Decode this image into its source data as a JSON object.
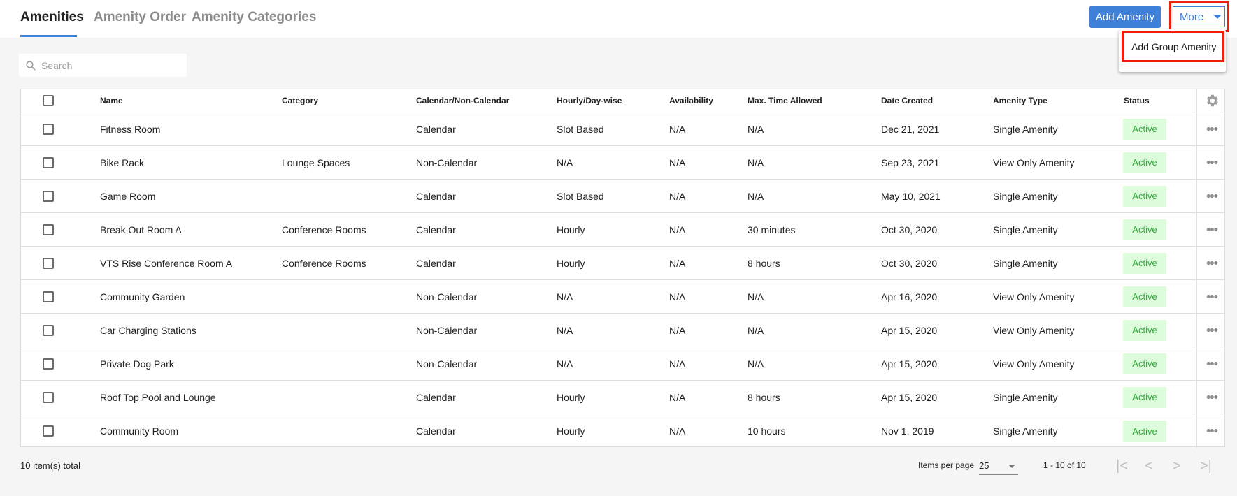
{
  "tabs": [
    {
      "label": "Amenities",
      "active": true
    },
    {
      "label": "Amenity Order"
    },
    {
      "label": "Amenity Categories"
    }
  ],
  "actions": {
    "add_label": "Add Amenity",
    "more_label": "More",
    "menu_items": [
      "Add Group Amenity"
    ]
  },
  "search": {
    "placeholder": "Search",
    "value": ""
  },
  "table": {
    "columns": [
      "Name",
      "Category",
      "Calendar/Non-Calendar",
      "Hourly/Day-wise",
      "Availability",
      "Max. Time Allowed",
      "Date Created",
      "Amenity Type",
      "Status"
    ],
    "rows": [
      [
        "Fitness Room",
        "",
        "Calendar",
        "Slot Based",
        "N/A",
        "N/A",
        "Dec 21, 2021",
        "Single Amenity",
        "Active"
      ],
      [
        "Bike Rack",
        "Lounge Spaces",
        "Non-Calendar",
        "N/A",
        "N/A",
        "N/A",
        "Sep 23, 2021",
        "View Only Amenity",
        "Active"
      ],
      [
        "Game Room",
        "",
        "Calendar",
        "Slot Based",
        "N/A",
        "N/A",
        "May 10, 2021",
        "Single Amenity",
        "Active"
      ],
      [
        "Break Out Room A",
        "Conference Rooms",
        "Calendar",
        "Hourly",
        "N/A",
        "30 minutes",
        "Oct 30, 2020",
        "Single Amenity",
        "Active"
      ],
      [
        "VTS Rise Conference Room A",
        "Conference Rooms",
        "Calendar",
        "Hourly",
        "N/A",
        "8 hours",
        "Oct 30, 2020",
        "Single Amenity",
        "Active"
      ],
      [
        "Community Garden",
        "",
        "Non-Calendar",
        "N/A",
        "N/A",
        "N/A",
        "Apr 16, 2020",
        "View Only Amenity",
        "Active"
      ],
      [
        "Car Charging Stations",
        "",
        "Non-Calendar",
        "N/A",
        "N/A",
        "N/A",
        "Apr 15, 2020",
        "View Only Amenity",
        "Active"
      ],
      [
        "Private Dog Park",
        "",
        "Non-Calendar",
        "N/A",
        "N/A",
        "N/A",
        "Apr 15, 2020",
        "View Only Amenity",
        "Active"
      ],
      [
        "Roof Top Pool and Lounge",
        "",
        "Calendar",
        "Hourly",
        "N/A",
        "8 hours",
        "Apr 15, 2020",
        "Single Amenity",
        "Active"
      ],
      [
        "Community Room",
        "",
        "Calendar",
        "Hourly",
        "N/A",
        "10 hours",
        "Nov 1, 2019",
        "Single Amenity",
        "Active"
      ]
    ]
  },
  "footer": {
    "total": "10 item(s) total",
    "items_per_page_label": "Items per page",
    "items_per_page": "25",
    "range": "1 - 10 of 10"
  },
  "colors": {
    "accent": "#3f80d9",
    "highlight": "#f21d0a",
    "active_bg": "#dcfcdc",
    "active_text": "#2eaa35"
  }
}
